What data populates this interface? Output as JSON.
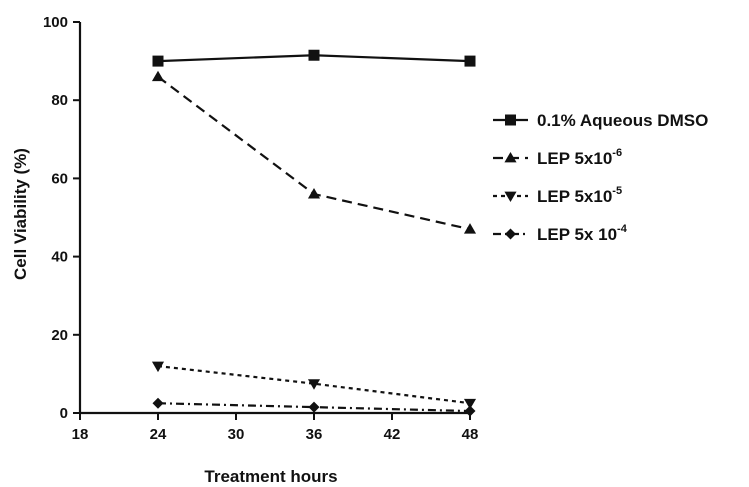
{
  "chart_data": {
    "type": "line",
    "xlabel": "Treatment hours",
    "ylabel": "Cell Viability (%)",
    "xlim": [
      18,
      48
    ],
    "ylim": [
      0,
      100
    ],
    "xticks": [
      18,
      24,
      30,
      36,
      42,
      48
    ],
    "yticks": [
      0,
      20,
      40,
      60,
      80,
      100
    ],
    "grid": false,
    "legend_position": "right",
    "x": [
      24,
      36,
      48
    ],
    "series": [
      {
        "name": "0.1% Aqueous DMSO",
        "name_base": "0.1% Aqueous DMSO",
        "name_sup": "",
        "marker": "square",
        "line": "solid",
        "values": [
          90,
          91.5,
          90
        ]
      },
      {
        "name": "LEP 5x10-6",
        "name_base": "LEP 5x10",
        "name_sup": "-6",
        "marker": "triangle-up",
        "line": "dashed",
        "values": [
          86,
          56,
          47
        ]
      },
      {
        "name": "LEP 5x10-5",
        "name_base": "LEP 5x10",
        "name_sup": "-5",
        "marker": "triangle-down",
        "line": "dotted",
        "values": [
          12,
          7.5,
          2.5
        ]
      },
      {
        "name": "LEP 5x 10-4",
        "name_base": "LEP 5x 10",
        "name_sup": "-4",
        "marker": "diamond",
        "line": "dashdot",
        "values": [
          2.5,
          1.5,
          0.5
        ]
      }
    ]
  }
}
